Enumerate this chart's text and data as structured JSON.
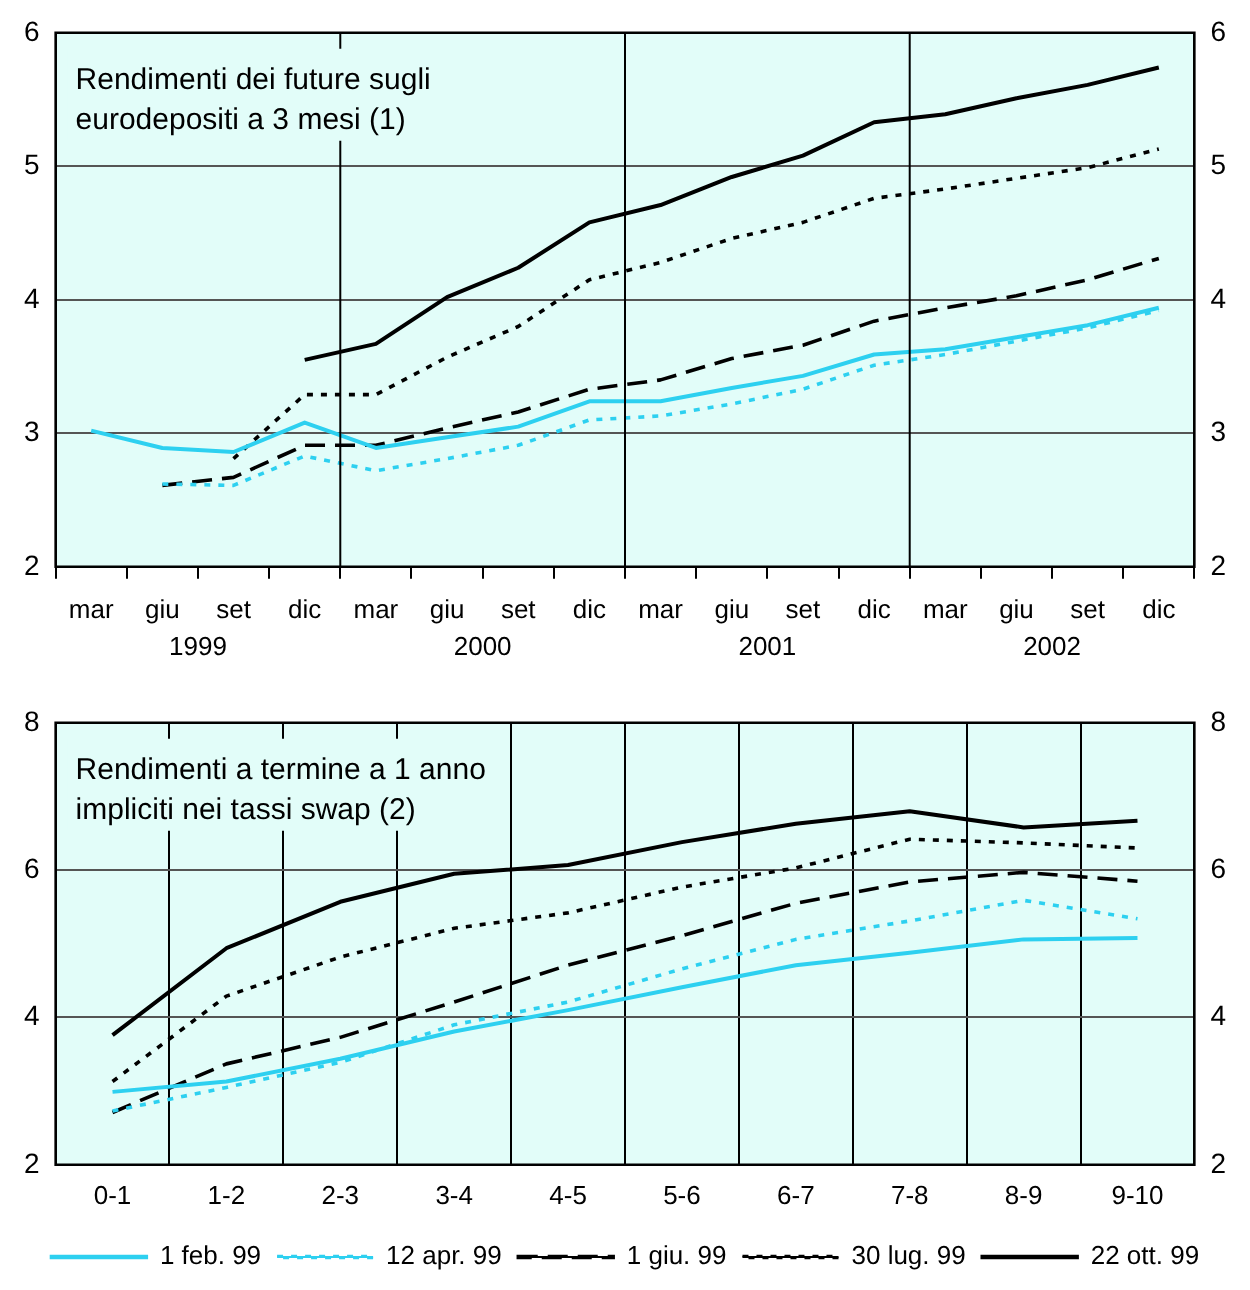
{
  "chart_data": [
    {
      "type": "line",
      "title": "Rendimenti dei future sugli eurodepositi a 3 mesi (1)",
      "categories": [
        "mar",
        "giu",
        "set",
        "dic",
        "mar",
        "giu",
        "set",
        "dic",
        "mar",
        "giu",
        "set",
        "dic",
        "mar",
        "giu",
        "set",
        "dic"
      ],
      "annotations": [
        "1999",
        "2000",
        "2001",
        "2002"
      ],
      "series": [
        {
          "color": "#2dd0f0",
          "line_style": "solid",
          "values": [
            3.02,
            2.89,
            2.86,
            3.08,
            2.89,
            2.97,
            3.05,
            3.24,
            3.24,
            3.34,
            3.43,
            3.59,
            3.63,
            3.72,
            3.81,
            3.94
          ]
        },
        {
          "color": "#2dd0f0",
          "line_style": "dotted",
          "values": [
            null,
            2.62,
            2.61,
            2.83,
            2.72,
            2.81,
            2.91,
            3.1,
            3.13,
            3.22,
            3.33,
            3.51,
            3.59,
            3.69,
            3.79,
            3.92
          ]
        },
        {
          "color": "#000000",
          "line_style": "dashed",
          "values": [
            null,
            2.61,
            2.67,
            2.91,
            2.91,
            3.04,
            3.16,
            3.33,
            3.4,
            3.56,
            3.66,
            3.84,
            3.94,
            4.03,
            4.15,
            4.31
          ]
        },
        {
          "color": "#000000",
          "line_style": "dotted",
          "values": [
            null,
            null,
            2.81,
            3.29,
            3.29,
            3.57,
            3.8,
            4.15,
            4.28,
            4.46,
            4.58,
            4.76,
            4.83,
            4.91,
            4.99,
            5.13
          ]
        },
        {
          "color": "#000000",
          "line_style": "solid",
          "values": [
            null,
            null,
            null,
            3.55,
            3.67,
            4.02,
            4.24,
            4.58,
            4.71,
            4.92,
            5.08,
            5.33,
            5.39,
            5.51,
            5.61,
            5.74
          ]
        }
      ],
      "ylim": [
        2,
        6
      ],
      "yticks": [
        2,
        3,
        4,
        5,
        6
      ],
      "y2lim": [
        2,
        6
      ],
      "y2ticks": [
        2,
        3,
        4,
        5,
        6
      ],
      "grid": "y",
      "legend": false,
      "marker": "none"
    },
    {
      "type": "line",
      "title": "Rendimenti a termine a 1 anno impliciti nei tassi swap (2)",
      "categories": [
        "0-1",
        "1-2",
        "2-3",
        "3-4",
        "4-5",
        "5-6",
        "6-7",
        "7-8",
        "8-9",
        "9-10"
      ],
      "series": [
        {
          "name": "1 feb. 99",
          "color": "#2dd0f0",
          "line_style": "solid",
          "values": [
            2.99,
            3.13,
            3.44,
            3.81,
            4.1,
            4.41,
            4.71,
            4.88,
            5.06,
            5.08
          ]
        },
        {
          "name": "12 apr. 99",
          "color": "#2dd0f0",
          "line_style": "dotted",
          "values": [
            2.73,
            3.05,
            3.39,
            3.9,
            4.21,
            4.66,
            5.06,
            5.31,
            5.59,
            5.34
          ]
        },
        {
          "name": "1 giu. 99",
          "color": "#000000",
          "line_style": "dashed",
          "values": [
            2.71,
            3.37,
            3.73,
            4.21,
            4.71,
            5.11,
            5.55,
            5.84,
            5.97,
            5.85
          ]
        },
        {
          "name": "30 lug. 99",
          "color": "#000000",
          "line_style": "dotted",
          "values": [
            3.13,
            4.29,
            4.82,
            5.21,
            5.42,
            5.77,
            6.03,
            6.42,
            6.37,
            6.3
          ]
        },
        {
          "name": "22 ott. 99",
          "color": "#000000",
          "line_style": "solid",
          "values": [
            3.76,
            4.94,
            5.57,
            5.95,
            6.07,
            6.38,
            6.63,
            6.8,
            6.58,
            6.67
          ]
        }
      ],
      "ylim": [
        2,
        8
      ],
      "yticks": [
        2,
        4,
        6,
        8
      ],
      "y2lim": [
        2,
        8
      ],
      "y2ticks": [
        2,
        4,
        6,
        8
      ],
      "grid": true,
      "legend": "bottom",
      "marker": "none"
    }
  ]
}
